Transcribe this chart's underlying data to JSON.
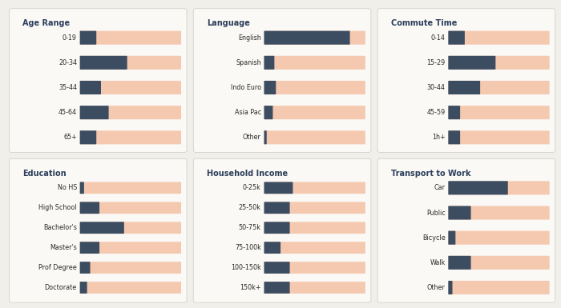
{
  "background": "#f0efe9",
  "card_color": "#faf9f6",
  "bar_bg": "#f5c9b0",
  "bar_fg": "#3d4d61",
  "title_color": "#2c3e5a",
  "label_color": "#2a2a2a",
  "panels": [
    {
      "title": "Age Range",
      "categories": [
        "0-19",
        "20-34",
        "35-44",
        "45-64",
        "65+"
      ],
      "values": [
        0.1,
        0.3,
        0.13,
        0.18,
        0.1
      ],
      "max_val": 0.65
    },
    {
      "title": "Language",
      "categories": [
        "English",
        "Spanish",
        "Indo Euro",
        "Asia Pac",
        "Other"
      ],
      "values": [
        0.55,
        0.06,
        0.07,
        0.05,
        0.01
      ],
      "max_val": 0.65
    },
    {
      "title": "Commute Time",
      "categories": [
        "0-14",
        "15-29",
        "30-44",
        "45-59",
        "1h+"
      ],
      "values": [
        0.1,
        0.3,
        0.2,
        0.07,
        0.07
      ],
      "max_val": 0.65
    },
    {
      "title": "Education",
      "categories": [
        "No HS",
        "High School",
        "Bachelor's",
        "Master's",
        "Prof Degree",
        "Doctorate"
      ],
      "values": [
        0.02,
        0.12,
        0.28,
        0.12,
        0.06,
        0.04
      ],
      "max_val": 0.65
    },
    {
      "title": "Household Income",
      "categories": [
        "0-25k",
        "25-50k",
        "50-75k",
        "75-100k",
        "100-150k",
        "150k+"
      ],
      "values": [
        0.18,
        0.16,
        0.16,
        0.1,
        0.16,
        0.16
      ],
      "max_val": 0.65
    },
    {
      "title": "Transport to Work",
      "categories": [
        "Car",
        "Public",
        "Bicycle",
        "Walk",
        "Other"
      ],
      "values": [
        0.38,
        0.14,
        0.04,
        0.14,
        0.02
      ],
      "max_val": 0.65
    }
  ]
}
